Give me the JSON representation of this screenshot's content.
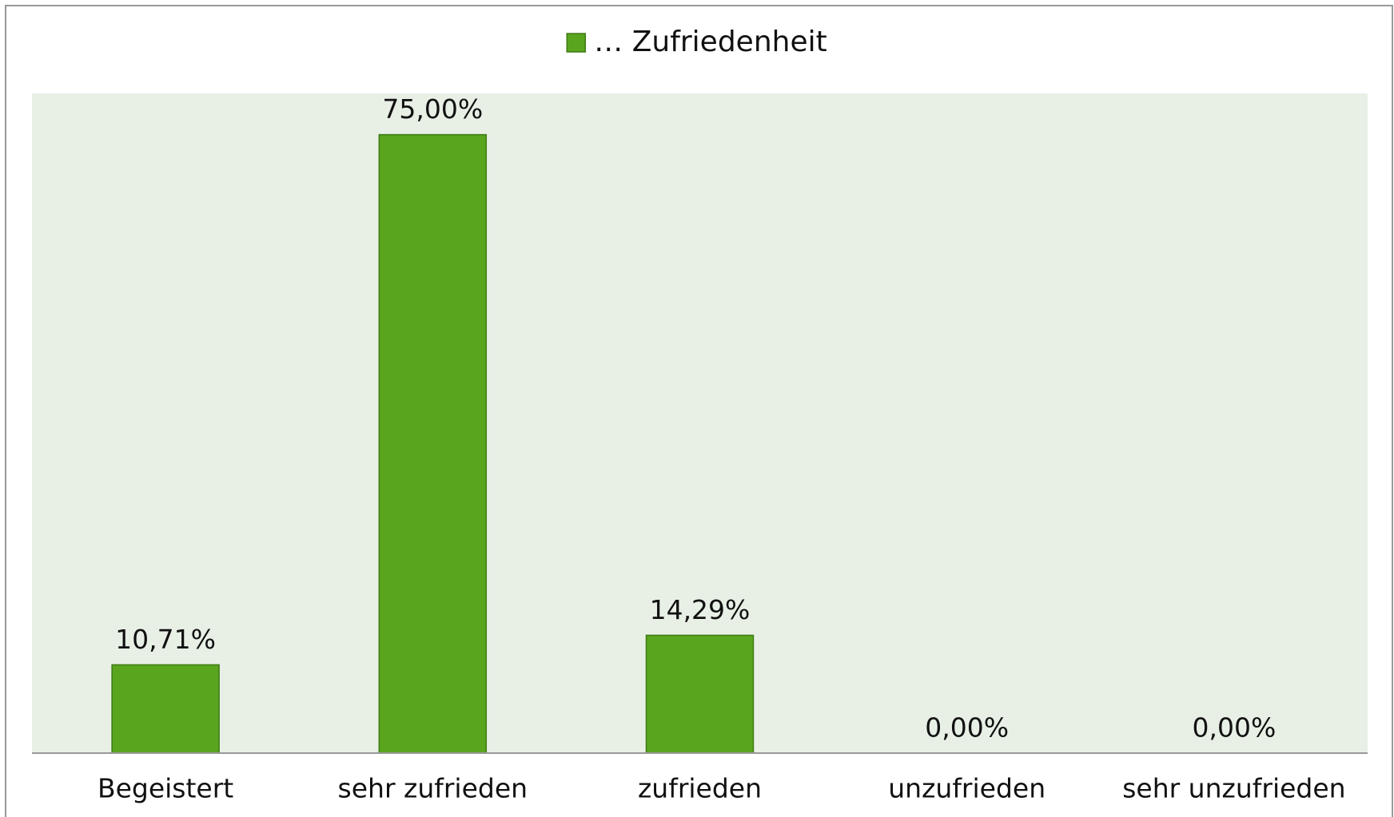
{
  "chart_data": {
    "type": "bar",
    "categories": [
      "Begeistert",
      "sehr zufrieden",
      "zufrieden",
      "unzufrieden",
      "sehr unzufrieden"
    ],
    "series": [
      {
        "name": "… Zufriedenheit",
        "color": "#5aa51e",
        "values": [
          10.71,
          75,
          14.29,
          0,
          0
        ],
        "value_labels": [
          "10,71%",
          "75,00%",
          "14,29%",
          "0,00%",
          "0,00%"
        ]
      }
    ],
    "ylim": [
      0,
      80
    ],
    "grid": false,
    "legend": "top"
  }
}
